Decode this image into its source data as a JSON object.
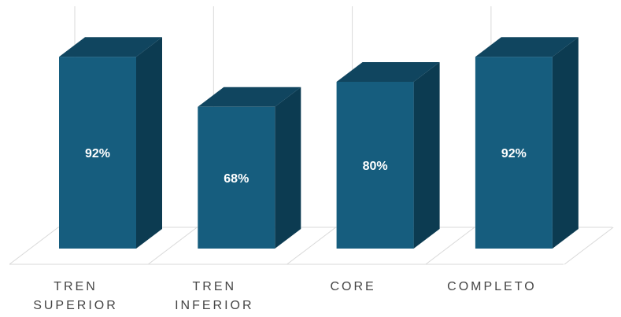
{
  "chart_data": {
    "type": "bar",
    "style": "3d-column",
    "categories": [
      [
        "TREN",
        "SUPERIOR"
      ],
      [
        "TREN",
        "INFERIOR"
      ],
      [
        "CORE"
      ],
      [
        "COMPLETO"
      ]
    ],
    "values": [
      92,
      68,
      80,
      92
    ],
    "value_labels": [
      "92%",
      "68%",
      "80%",
      "92%"
    ],
    "ylim": [
      0,
      100
    ],
    "grid": true,
    "legend": "none",
    "colors": {
      "front": "#165d7e",
      "side": "#0c3b51",
      "top": "#10455f",
      "value_text": "#ffffff",
      "category_text": "#444444",
      "grid": "#d9d9d9"
    }
  }
}
